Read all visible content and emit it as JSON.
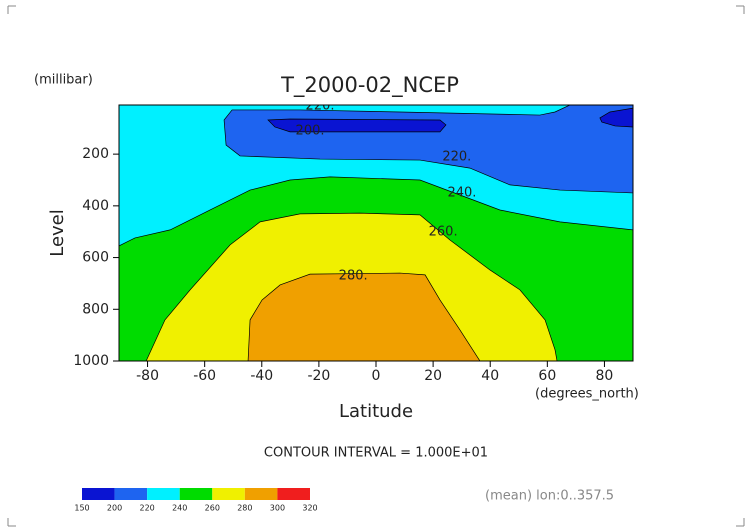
{
  "chart_data": {
    "type": "contour",
    "title": "T_2000-02_NCEP",
    "y_units": "(millibar)",
    "y_label": "Level",
    "x_label": "Latitude",
    "x_units": "(degrees_north)",
    "note": "CONTOUR INTERVAL = 1.000E+01",
    "footer": "(mean) lon:0..357.5",
    "xlim": [
      -90,
      90
    ],
    "xticks": [
      -80,
      -60,
      -40,
      -20,
      0,
      20,
      40,
      60,
      80
    ],
    "ylim": [
      1000,
      10
    ],
    "yticks": [
      200,
      400,
      600,
      800,
      1000
    ],
    "regions": [
      {
        "color": "#00f0ff",
        "x": [
          -90,
          90,
          90,
          -90
        ],
        "y": [
          1000,
          1000,
          10,
          10
        ]
      },
      {
        "color": "#00dc00",
        "x": [
          -90,
          -90,
          -84.4,
          -72.1,
          -58.1,
          -44.1,
          -30.1,
          -16.1,
          15.4,
          29.4,
          43.4,
          64.4,
          90,
          90
        ],
        "y": [
          1000,
          555,
          524,
          493,
          416,
          339,
          300,
          288,
          300,
          358,
          416,
          462,
          493,
          1000
        ]
      },
      {
        "color": "#f0f000",
        "x": [
          -80.5,
          -73.9,
          -65.1,
          -51.1,
          -40.6,
          -26.6,
          -5.6,
          15.4,
          25.9,
          39.9,
          50.4,
          59.2,
          62.7,
          63.4
        ],
        "y": [
          1000,
          841,
          725,
          551,
          462,
          431,
          428,
          435,
          532,
          648,
          725,
          841,
          957,
          1000
        ]
      },
      {
        "color": "#f0a000",
        "x": [
          -44.8,
          -44.1,
          -39.9,
          -33.6,
          -23.1,
          8.4,
          17.2,
          22.4,
          29.4,
          36.4
        ],
        "y": [
          1000,
          841,
          764,
          706,
          664,
          660,
          667,
          764,
          880,
          1000
        ]
      },
      {
        "color": "#1e64f0",
        "x": [
          -50.4,
          -53.2,
          -52.5,
          -47.6,
          -19.6,
          15.4,
          32.9,
          46.9,
          64.4,
          90,
          90,
          67.9,
          62.7,
          57.4,
          8.4,
          -26.6
        ],
        "y": [
          29,
          68,
          165,
          207,
          219,
          223,
          254,
          319,
          339,
          350,
          10,
          10,
          37,
          49,
          37,
          29
        ]
      },
      {
        "color": "#0a14d2",
        "x": [
          -37.8,
          -35.4,
          -30.1,
          22.4,
          24.5,
          22.4,
          -30.1
        ],
        "y": [
          68,
          95,
          114,
          114,
          87,
          68,
          64
        ]
      },
      {
        "color": "#0a14d2",
        "x": [
          78.4,
          81.9,
          90,
          90,
          83.7,
          79.1
        ],
        "y": [
          60,
          37,
          22,
          95,
          91,
          76
        ]
      }
    ],
    "contour_labels": [
      {
        "text": "220.",
        "x": -19.6,
        "y": 14
      },
      {
        "text": "200.",
        "x": -23.1,
        "y": 110
      },
      {
        "text": "220.",
        "x": 28.3,
        "y": 211
      },
      {
        "text": "240.",
        "x": 30.1,
        "y": 350
      },
      {
        "text": "260.",
        "x": 23.5,
        "y": 501
      },
      {
        "text": "280.",
        "x": -8,
        "y": 671
      }
    ],
    "colorbar": {
      "levels": [
        150,
        200,
        220,
        240,
        260,
        280,
        300,
        320
      ],
      "colors": [
        "#0a14d2",
        "#1e64f0",
        "#00f0ff",
        "#00dc00",
        "#f0f000",
        "#f0a000",
        "#f01e1e"
      ]
    }
  }
}
